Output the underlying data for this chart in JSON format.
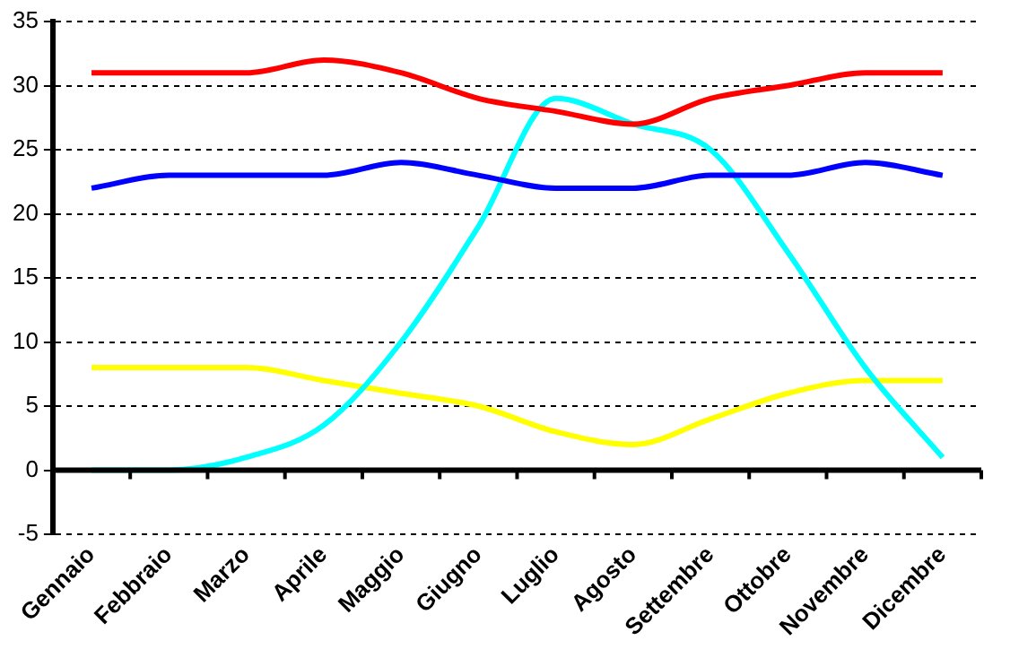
{
  "chart_data": {
    "type": "line",
    "categories": [
      "Gennaio",
      "Febbraio",
      "Marzo",
      "Aprile",
      "Maggio",
      "Giugno",
      "Luglio",
      "Agosto",
      "Settembre",
      "Ottobre",
      "Novembre",
      "Dicembre"
    ],
    "series": [
      {
        "color": "#ff0000",
        "values": [
          31,
          31,
          31,
          32,
          31,
          29,
          28,
          27,
          29,
          30,
          31,
          31
        ]
      },
      {
        "color": "#0000ff",
        "values": [
          22,
          23,
          23,
          23,
          24,
          23,
          22,
          22,
          23,
          23,
          24,
          23
        ]
      },
      {
        "color": "#00ffff",
        "values": [
          0,
          0,
          1,
          3.5,
          10,
          19,
          29,
          27,
          25,
          17,
          8,
          1
        ]
      },
      {
        "color": "#ffff00",
        "values": [
          8,
          8,
          8,
          7,
          6,
          5,
          3,
          2,
          4,
          6,
          7,
          7
        ]
      }
    ],
    "ylim": [
      -5,
      35
    ],
    "yticks": [
      -5,
      0,
      5,
      10,
      15,
      20,
      25,
      30,
      35
    ],
    "grid": "y",
    "legend": false,
    "marker": "none",
    "line_style": "solid"
  }
}
